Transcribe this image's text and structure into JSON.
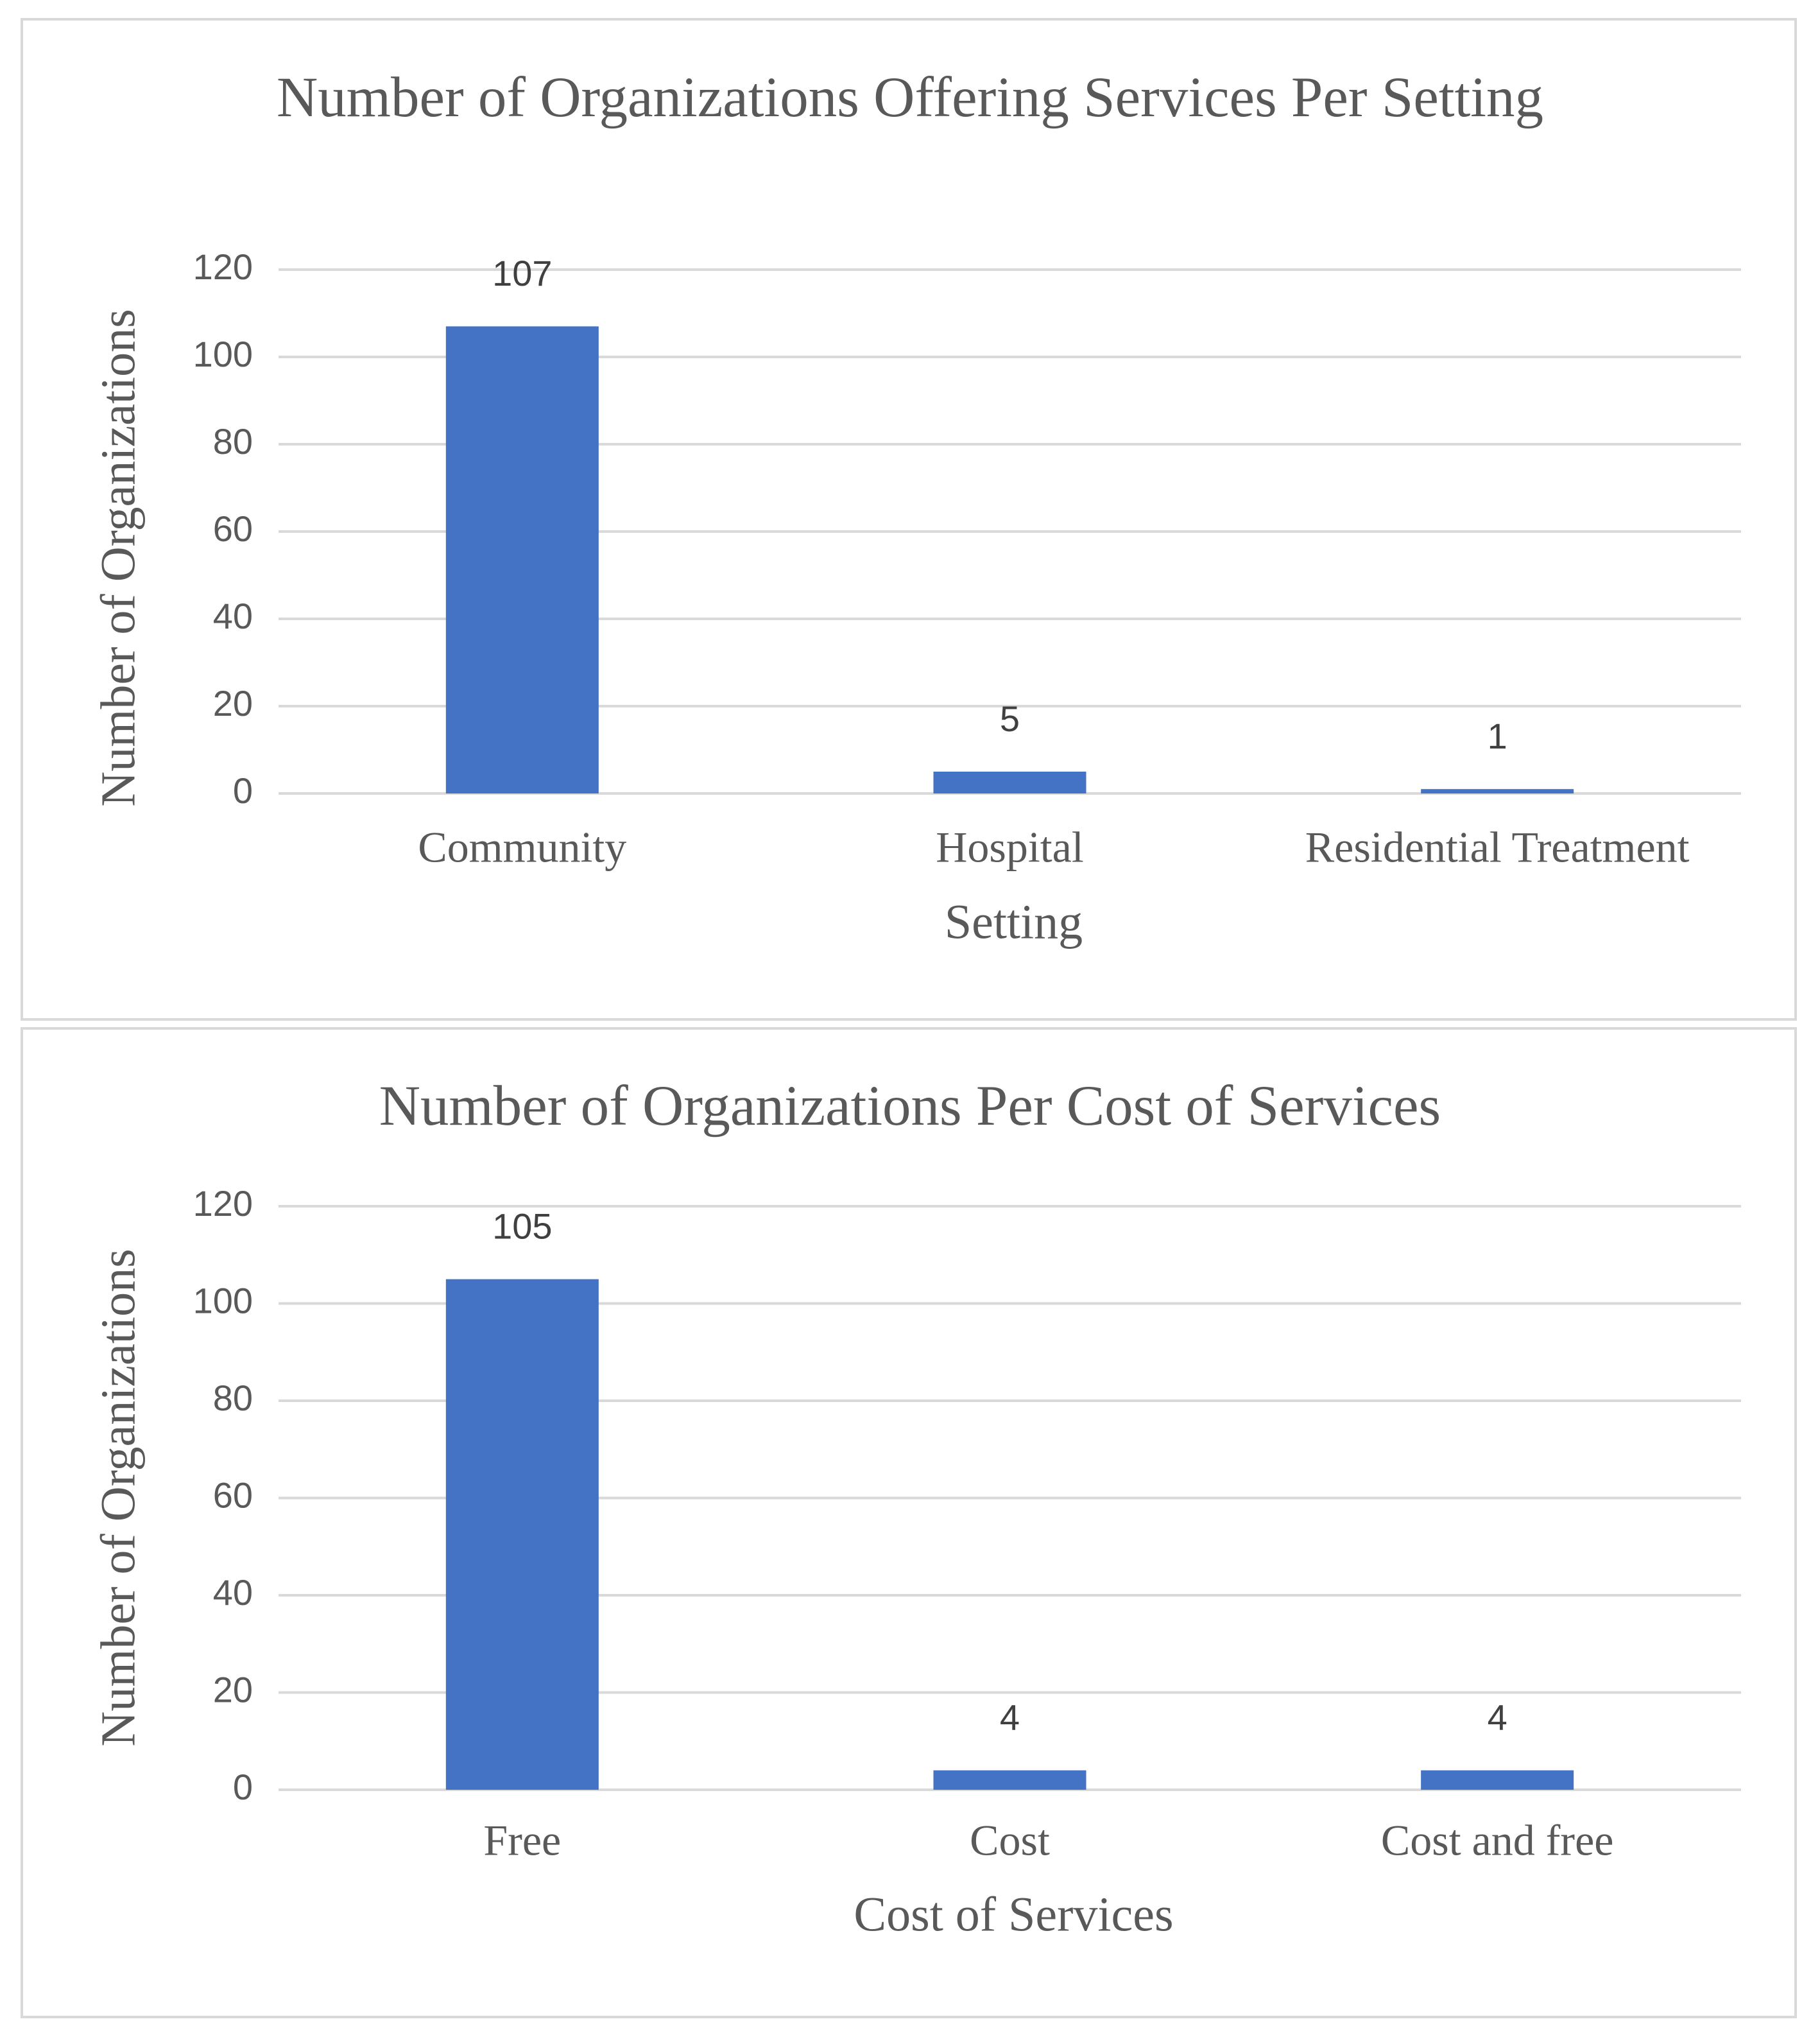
{
  "chart_data": [
    {
      "type": "bar",
      "title": "Number of Organizations Offering Services Per Setting",
      "x_label": "Setting",
      "y_label": "Number of Organizations",
      "categories": [
        "Community",
        "Hospital",
        "Residential Treatment"
      ],
      "values": [
        107,
        5,
        1
      ],
      "color": "#4472c4",
      "ylim": [
        0,
        120
      ],
      "yticks": [
        0,
        20,
        40,
        60,
        80,
        100,
        120
      ],
      "grid": true
    },
    {
      "type": "bar",
      "title": "Number of Organizations Per Cost of Services",
      "x_label": "Cost of Services",
      "y_label": "Number of Organizations",
      "categories": [
        "Free",
        "Cost",
        "Cost and free"
      ],
      "values": [
        105,
        4,
        4
      ],
      "color": "#4472c4",
      "ylim": [
        0,
        120
      ],
      "yticks": [
        0,
        20,
        40,
        60,
        80,
        100,
        120
      ],
      "grid": true
    }
  ]
}
